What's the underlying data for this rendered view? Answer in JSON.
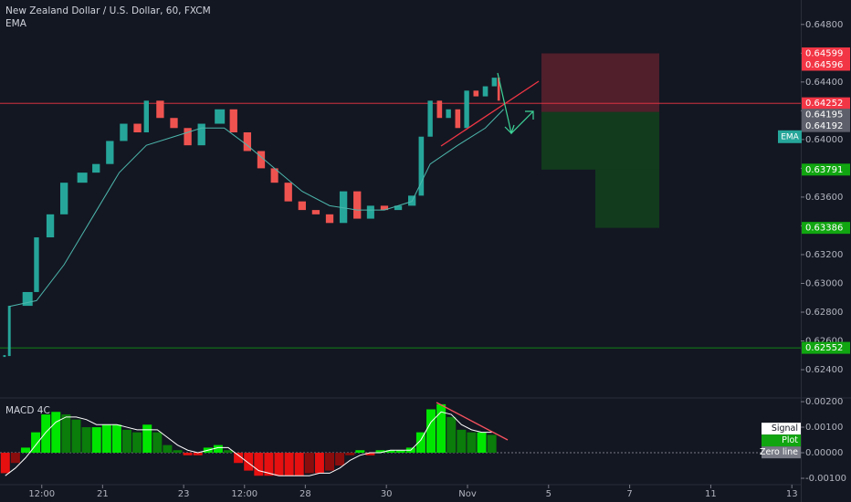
{
  "chart_data": [
    {
      "type": "candlestick",
      "title": "New Zealand Dollar / U.S. Dollar, 60, FXCM",
      "x": [
        -2.42,
        -2.3,
        -1.85,
        -1.63,
        -1.29,
        -0.95,
        -0.5,
        -0.16,
        0.18,
        0.52,
        0.86,
        1.08,
        1.42,
        1.76,
        2.1,
        2.44,
        2.89,
        3.23,
        3.57,
        3.91,
        4.24,
        4.58,
        4.92,
        5.26,
        5.6,
        5.94,
        6.28,
        6.61,
        6.95,
        7.29,
        7.63,
        7.86,
        8.08,
        8.31,
        8.53,
        8.76,
        8.98,
        9.21,
        9.44,
        9.66,
        9.77
      ],
      "close": [
        0.62495,
        0.62844,
        0.6294,
        0.6332,
        0.6348,
        0.637,
        0.6377,
        0.6383,
        0.6399,
        0.6411,
        0.6405,
        0.6427,
        0.6415,
        0.6408,
        0.6396,
        0.6411,
        0.6421,
        0.6405,
        0.6392,
        0.638,
        0.637,
        0.6357,
        0.6351,
        0.6348,
        0.6342,
        0.6364,
        0.6345,
        0.6354,
        0.6351,
        0.6354,
        0.6361,
        0.6402,
        0.6427,
        0.6415,
        0.6421,
        0.6408,
        0.6434,
        0.643,
        0.6437,
        0.6443,
        0.6427
      ],
      "up_color": "#26a69a",
      "down_color": "#ef5350",
      "indicators": [
        {
          "name": "EMA",
          "color": "#4db6ac",
          "x": [
            -2.3,
            -1.63,
            -0.95,
            -0.27,
            0.41,
            1.08,
            1.76,
            2.44,
            3.0,
            3.57,
            4.24,
            4.92,
            5.6,
            6.28,
            6.95,
            7.63,
            8.08,
            8.76,
            9.44,
            9.89
          ],
          "values": [
            0.6284,
            0.6288,
            0.6313,
            0.6345,
            0.6377,
            0.6396,
            0.6402,
            0.6408,
            0.6408,
            0.6396,
            0.638,
            0.6364,
            0.6354,
            0.6351,
            0.6351,
            0.6357,
            0.6383,
            0.6396,
            0.6408,
            0.6421
          ]
        }
      ],
      "xlim": [
        -2.53,
        17.22
      ],
      "ylim": [
        0.6221,
        0.6497
      ],
      "yticks": [
        {
          "value": 0.648,
          "label": "0.64800"
        },
        {
          "value": 0.646,
          "label": "0.64600"
        },
        {
          "value": 0.644,
          "label": "0.64400"
        },
        {
          "value": 0.642,
          "label": "0.64200"
        },
        {
          "value": 0.64,
          "label": "0.64000"
        },
        {
          "value": 0.638,
          "label": "0.63800"
        },
        {
          "value": 0.636,
          "label": "0.63600"
        },
        {
          "value": 0.634,
          "label": "0.63400"
        },
        {
          "value": 0.632,
          "label": "0.63200"
        },
        {
          "value": 0.63,
          "label": "0.63000"
        },
        {
          "value": 0.628,
          "label": "0.62800"
        },
        {
          "value": 0.626,
          "label": "0.62600"
        },
        {
          "value": 0.624,
          "label": "0.62400"
        }
      ],
      "price_labels": [
        {
          "value": 0.64599,
          "color": "#f23645"
        },
        {
          "value": 0.64596,
          "color": "#f23645"
        },
        {
          "value": 0.64252,
          "color": "#f23645"
        },
        {
          "value": 0.64195,
          "color": "#5d606b"
        },
        {
          "value": 0.64192,
          "color": "#5d606b"
        },
        {
          "value": 0.63791,
          "color": "#11a611"
        },
        {
          "value": 0.63386,
          "color": "#11a611"
        },
        {
          "value": 0.62552,
          "color": "#11a611"
        }
      ]
    },
    {
      "type": "macd",
      "title": "MACD 4C",
      "x": [
        -2.4,
        -2.15,
        -1.9,
        -1.65,
        -1.4,
        -1.15,
        -0.9,
        -0.65,
        -0.4,
        -0.15,
        0.1,
        0.35,
        0.6,
        0.85,
        1.1,
        1.35,
        1.6,
        1.85,
        2.1,
        2.35,
        2.6,
        2.85,
        3.1,
        3.35,
        3.6,
        3.85,
        4.1,
        4.35,
        4.6,
        4.85,
        5.1,
        5.35,
        5.6,
        5.85,
        6.1,
        6.35,
        6.6,
        6.85,
        7.1,
        7.35,
        7.6,
        7.85,
        8.1,
        8.35,
        8.6,
        8.85,
        9.1,
        9.35,
        9.6
      ],
      "series": [
        {
          "name": "Signal",
          "color": "#ffffff",
          "values": [
            -0.0009,
            -0.0006,
            -0.0002,
            0.0003,
            0.0008,
            0.0012,
            0.0014,
            0.0014,
            0.0013,
            0.0011,
            0.0011,
            0.0011,
            0.001,
            0.0009,
            0.0009,
            0.0009,
            0.0006,
            0.0003,
            0.0001,
            0,
            0.0001,
            0.0002,
            0.0002,
            -0.0001,
            -0.0004,
            -0.0007,
            -0.0008,
            -0.0009,
            -0.0009,
            -0.0009,
            -0.0009,
            -0.0008,
            -0.0008,
            -0.0006,
            -0.0003,
            -0.0001,
            0,
            0,
            0.0001,
            0.0001,
            0.0001,
            0.0005,
            0.0012,
            0.0016,
            0.0015,
            0.0011,
            0.0009,
            0.0008,
            0.0008
          ]
        },
        {
          "name": "Plot",
          "color": "#11a611",
          "values": [
            -0.0008,
            -0.0004,
            0.0002,
            0.0008,
            0.0015,
            0.0016,
            0.0015,
            0.0013,
            0.001,
            0.001,
            0.0011,
            0.0011,
            0.0009,
            0.0008,
            0.0011,
            0.0008,
            0.0003,
            0.0001,
            -0.0001,
            -0.0001,
            0.0002,
            0.0003,
            0.0001,
            -0.0004,
            -0.0007,
            -0.0009,
            -0.0009,
            -0.0009,
            -0.0009,
            -0.0009,
            -0.0008,
            -0.0008,
            -0.0007,
            -0.0005,
            -0.0001,
            0.0001,
            -0.0001,
            0.0001,
            0.0001,
            0.0001,
            0.0002,
            0.0008,
            0.0017,
            0.0019,
            0.0014,
            0.0009,
            0.0008,
            0.0008,
            0.0007
          ]
        }
      ],
      "bar_colors": {
        "pos_up": "#00e600",
        "pos_down": "#0a7d0a",
        "neg_down": "#e61010",
        "neg_up": "#8a0d0d"
      },
      "zero_line": {
        "name": "Zero line",
        "color": "#787b86"
      },
      "xlim": [
        -2.53,
        17.22
      ],
      "ylim": [
        -0.00125,
        0.00211
      ],
      "yticks": [
        {
          "value": 0.002,
          "label": "0.00200"
        },
        {
          "value": 0.001,
          "label": "0.00100"
        },
        {
          "value": 0,
          "label": "0.00000"
        },
        {
          "value": -0.001,
          "label": "-0.00100"
        }
      ],
      "xticks": [
        {
          "value": -1.5,
          "label": "12:00"
        },
        {
          "value": 0,
          "label": "21"
        },
        {
          "value": 2,
          "label": "23"
        },
        {
          "value": 3.5,
          "label": "12:00"
        },
        {
          "value": 5,
          "label": "28"
        },
        {
          "value": 7,
          "label": "30"
        },
        {
          "value": 9,
          "label": "Nov"
        },
        {
          "value": 11,
          "label": "5"
        },
        {
          "value": 13,
          "label": "7"
        },
        {
          "value": 15,
          "label": "11"
        },
        {
          "value": 17,
          "label": "13"
        }
      ]
    }
  ]
}
